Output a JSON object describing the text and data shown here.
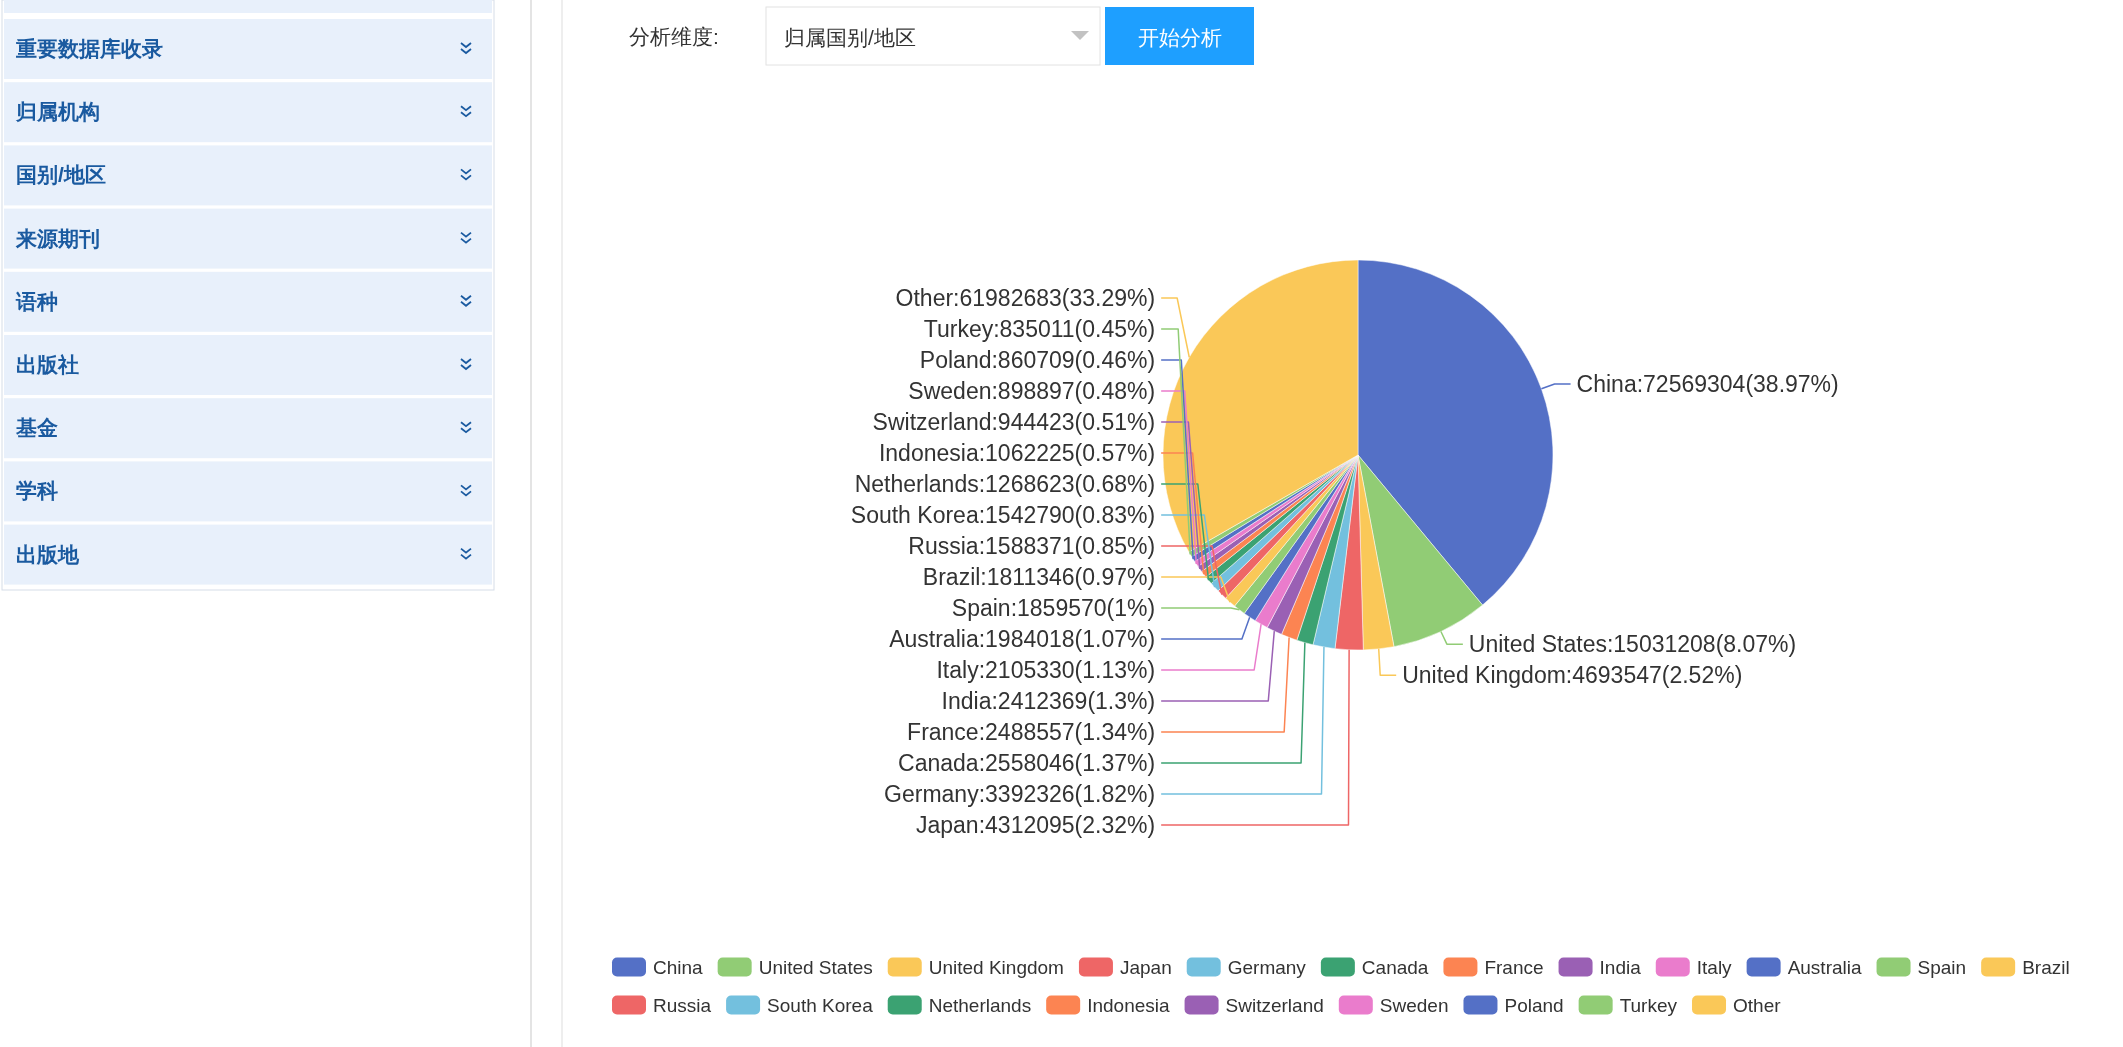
{
  "chart_data": {
    "type": "pie",
    "categories": [
      "China",
      "United States",
      "United Kingdom",
      "Japan",
      "Germany",
      "Canada",
      "France",
      "India",
      "Italy",
      "Australia",
      "Spain",
      "Brazil",
      "Russia",
      "South Korea",
      "Netherlands",
      "Indonesia",
      "Switzerland",
      "Sweden",
      "Poland",
      "Turkey",
      "Other"
    ],
    "values": [
      72569304,
      15031208,
      4693547,
      4312095,
      3392326,
      2558046,
      2488557,
      2412369,
      2105330,
      1984018,
      1859570,
      1811346,
      1588371,
      1542790,
      1268623,
      1062225,
      944423,
      898897,
      860709,
      835011,
      61982683
    ],
    "value_labels": [
      "China:72569304(38.97%)",
      "United States:15031208(8.07%)",
      "United Kingdom:4693547(2.52%)",
      "Japan:4312095(2.32%)",
      "Germany:3392326(1.82%)",
      "Canada:2558046(1.37%)",
      "France:2488557(1.34%)",
      "India:2412369(1.3%)",
      "Italy:2105330(1.13%)",
      "Australia:1984018(1.07%)",
      "Spain:1859570(1%)",
      "Brazil:1811346(0.97%)",
      "Russia:1588371(0.85%)",
      "South Korea:1542790(0.83%)",
      "Netherlands:1268623(0.68%)",
      "Indonesia:1062225(0.57%)",
      "Switzerland:944423(0.51%)",
      "Sweden:898897(0.48%)",
      "Poland:860709(0.46%)",
      "Turkey:835011(0.45%)",
      "Other:61982683(33.29%)"
    ],
    "colors": [
      "#5470c6",
      "#91cc75",
      "#fac858",
      "#ee6666",
      "#73c0de",
      "#3ba272",
      "#fc8452",
      "#9a60b4",
      "#ea7ccc",
      "#5470c6",
      "#91cc75",
      "#fac858",
      "#ee6666",
      "#73c0de",
      "#3ba272",
      "#fc8452",
      "#9a60b4",
      "#ea7ccc",
      "#5470c6",
      "#91cc75",
      "#fac858"
    ],
    "legend": "bottom",
    "annotations": [
      "重要数据库收录",
      "归属机构",
      "国别/地区",
      "来源期刊",
      "语种",
      "出版社",
      "基金",
      "学科",
      "出版地",
      "分析维度:",
      "归属国别/地区",
      "开始分析"
    ]
  }
}
